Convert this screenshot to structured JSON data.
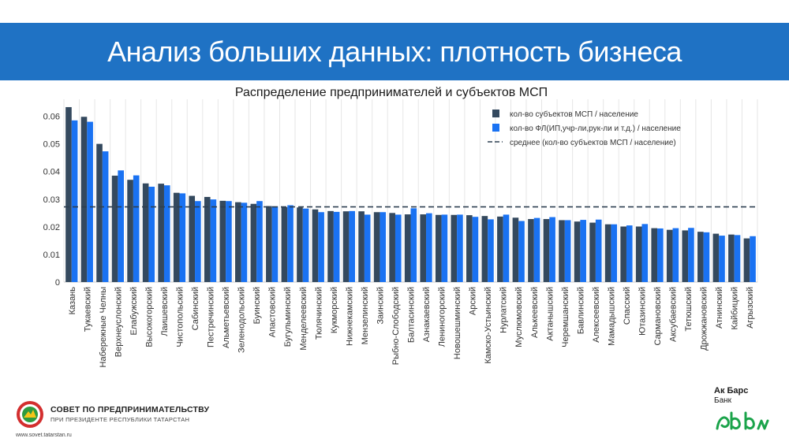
{
  "header": {
    "title": "Анализ больших данных: плотность бизнеса"
  },
  "footer": {
    "org_line1": "СОВЕТ ПО ПРЕДПРИНИМАТЕЛЬСТВУ",
    "org_line2": "ПРИ ПРЕЗИДЕНТЕ РЕСПУБЛИКИ ТАТАРСТАН",
    "website": "www.sovet.tatarstan.ru",
    "bank_name": "Ак Барс",
    "bank_sub": "Банк"
  },
  "colors": {
    "banner": "#1f72c4",
    "series1": "#34495e",
    "series2": "#1a72f2",
    "mean_line": "#2c3e50",
    "bank_green": "#1aa34a"
  },
  "chart_data": {
    "type": "bar",
    "title": "Распределение предпринимателей и субъектов МСП",
    "legend_position": "top-right",
    "grid": "vertical",
    "ylim": [
      0,
      0.065
    ],
    "yticks": [
      "0",
      "0.01",
      "0.02",
      "0.03",
      "0.04",
      "0.05",
      "0.06"
    ],
    "categories": [
      "Казань",
      "Тукаевский",
      "Набережные Челны",
      "Верхнеуслонский",
      "Елабужский",
      "Высокогорский",
      "Лаишевский",
      "Чистопольский",
      "Сабинский",
      "Пестречинский",
      "Альметьевский",
      "Зеленодольский",
      "Буинский",
      "Апастовский",
      "Бугульминский",
      "Менделеевский",
      "Тюлячинский",
      "Кукморский",
      "Нижнекамский",
      "Мензелинский",
      "Заинский",
      "Рыбно-Слободский",
      "Балтасинский",
      "Азнакаевский",
      "Лениногорский",
      "Новошешминский",
      "Арский",
      "Камско-Устьинский",
      "Нурлатский",
      "Муслюмовский",
      "Алькеевский",
      "Актанышский",
      "Черемшанский",
      "Бавлинский",
      "Алексеевский",
      "Мамадышский",
      "Спасский",
      "Ютазинский",
      "Сармановский",
      "Аксубаевский",
      "Тетюшский",
      "Дрожжановский",
      "Атнинский",
      "Кайбицкий",
      "Агрызский"
    ],
    "series": [
      {
        "name": "кол-во субъектов МСП / население",
        "values": [
          0.0633,
          0.0598,
          0.05,
          0.0385,
          0.037,
          0.0357,
          0.0356,
          0.0323,
          0.0312,
          0.0308,
          0.0294,
          0.0289,
          0.0283,
          0.0275,
          0.0271,
          0.027,
          0.0263,
          0.0257,
          0.0256,
          0.0256,
          0.0253,
          0.025,
          0.0245,
          0.0245,
          0.0243,
          0.0243,
          0.0242,
          0.0239,
          0.0237,
          0.0233,
          0.0228,
          0.0228,
          0.0224,
          0.0219,
          0.0215,
          0.0209,
          0.0201,
          0.0201,
          0.0195,
          0.0189,
          0.0187,
          0.0182,
          0.0175,
          0.0172,
          0.0158
        ]
      },
      {
        "name": "кол-во ФЛ(ИП,учр-ли,рук-ли и т.д.) / население",
        "values": [
          0.0585,
          0.058,
          0.0473,
          0.0404,
          0.0386,
          0.0345,
          0.035,
          0.0321,
          0.0293,
          0.0299,
          0.0293,
          0.0287,
          0.0293,
          0.0274,
          0.0278,
          0.0266,
          0.0253,
          0.0254,
          0.0257,
          0.0244,
          0.0253,
          0.0244,
          0.0267,
          0.0249,
          0.0244,
          0.0244,
          0.0236,
          0.0227,
          0.0244,
          0.0221,
          0.0232,
          0.0235,
          0.0224,
          0.0225,
          0.0226,
          0.0209,
          0.0205,
          0.021,
          0.0194,
          0.0195,
          0.0196,
          0.018,
          0.0168,
          0.017,
          0.0166
        ]
      }
    ],
    "mean_line": {
      "name": "среднее (кол-во субъектов МСП / население)",
      "value": 0.0272
    }
  }
}
